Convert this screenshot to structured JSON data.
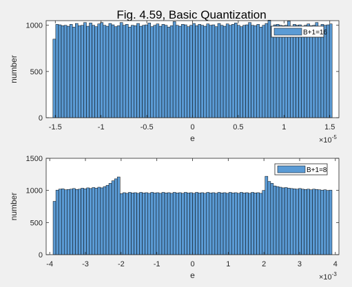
{
  "figure_title": "Fig. 4.59, Basic Quantization",
  "colors": {
    "background": "#f0f0f0",
    "axes_bg": "#ffffff",
    "bar_fill": "#5b9bd5",
    "bar_edge": "#000000",
    "axis_color": "#262626"
  },
  "chart_data": [
    {
      "type": "bar",
      "title": "Fig. 4.59, Basic Quantization",
      "xlabel": "e",
      "ylabel": "number",
      "exponent_label": "-5",
      "xlim": [
        -1.6,
        1.6
      ],
      "ylim": [
        0,
        1050
      ],
      "xticks": [
        -1.5,
        -1,
        -0.5,
        0,
        0.5,
        1,
        1.5
      ],
      "xtick_labels": [
        "-1.5",
        "-1",
        "-0.5",
        "0",
        "0.5",
        "1",
        "1.5"
      ],
      "yticks": [
        0,
        500,
        1000
      ],
      "ytick_labels": [
        "0",
        "500",
        "1000"
      ],
      "bin_start": -1.5259,
      "bin_width": 0.030518,
      "values": [
        850,
        1010,
        1005,
        995,
        1000,
        990,
        1010,
        980,
        1020,
        995,
        1000,
        1030,
        990,
        1025,
        1000,
        985,
        1015,
        1030,
        1000,
        990,
        1020,
        1005,
        985,
        995,
        1030,
        1000,
        1010,
        980,
        1000,
        995,
        1020,
        990,
        1000,
        1005,
        1025,
        985,
        1000,
        1015,
        990,
        1010,
        1000,
        980,
        995,
        1040,
        1000,
        990,
        1010,
        1005,
        985,
        1000,
        1020,
        995,
        1010,
        1000,
        990,
        1015,
        1000,
        1005,
        985,
        1020,
        1000,
        990,
        1015,
        1000,
        1010,
        1025,
        1000,
        985,
        1000,
        1005,
        1030,
        1000,
        995,
        1010,
        980,
        1000,
        1020,
        1055,
        990,
        1005,
        1010,
        1000,
        995,
        1000,
        1045,
        990,
        1010,
        1000,
        1005,
        990,
        1000,
        1015,
        995,
        1000,
        1030,
        990,
        1010,
        1000,
        1005,
        1015
      ],
      "legend": "B+1=16",
      "legend_position": "top-right"
    },
    {
      "type": "bar",
      "title": "",
      "xlabel": "e",
      "ylabel": "number",
      "exponent_label": "-3",
      "xlim": [
        -4.1,
        4.1
      ],
      "ylim": [
        0,
        1500
      ],
      "xticks": [
        -4,
        -3,
        -2,
        -1,
        0,
        1,
        2,
        3,
        4
      ],
      "xtick_labels": [
        "-4",
        "-3",
        "-2",
        "-1",
        "0",
        "1",
        "2",
        "3",
        "4"
      ],
      "yticks": [
        0,
        500,
        1000,
        1500
      ],
      "ytick_labels": [
        "0",
        "500",
        "1000",
        "1500"
      ],
      "bin_start": -3.906,
      "bin_width": 0.078125,
      "values": [
        830,
        1005,
        1020,
        1025,
        1010,
        1015,
        1020,
        1030,
        1015,
        1020,
        1035,
        1025,
        1040,
        1030,
        1045,
        1035,
        1050,
        1040,
        1060,
        1080,
        1110,
        1150,
        1180,
        1210,
        950,
        965,
        955,
        970,
        960,
        965,
        955,
        970,
        960,
        965,
        955,
        970,
        960,
        965,
        955,
        970,
        960,
        965,
        955,
        970,
        960,
        965,
        955,
        970,
        960,
        965,
        955,
        970,
        960,
        965,
        955,
        970,
        960,
        965,
        955,
        970,
        960,
        965,
        955,
        970,
        960,
        965,
        955,
        970,
        960,
        965,
        955,
        970,
        960,
        965,
        955,
        1000,
        1220,
        1140,
        1110,
        1070,
        1060,
        1050,
        1040,
        1045,
        1035,
        1030,
        1025,
        1020,
        1030,
        1020,
        1015,
        1020,
        1010,
        1020,
        1015,
        1010,
        1005,
        1010,
        1000,
        1005
      ],
      "legend": "B+1=8",
      "legend_position": "top-right"
    }
  ]
}
